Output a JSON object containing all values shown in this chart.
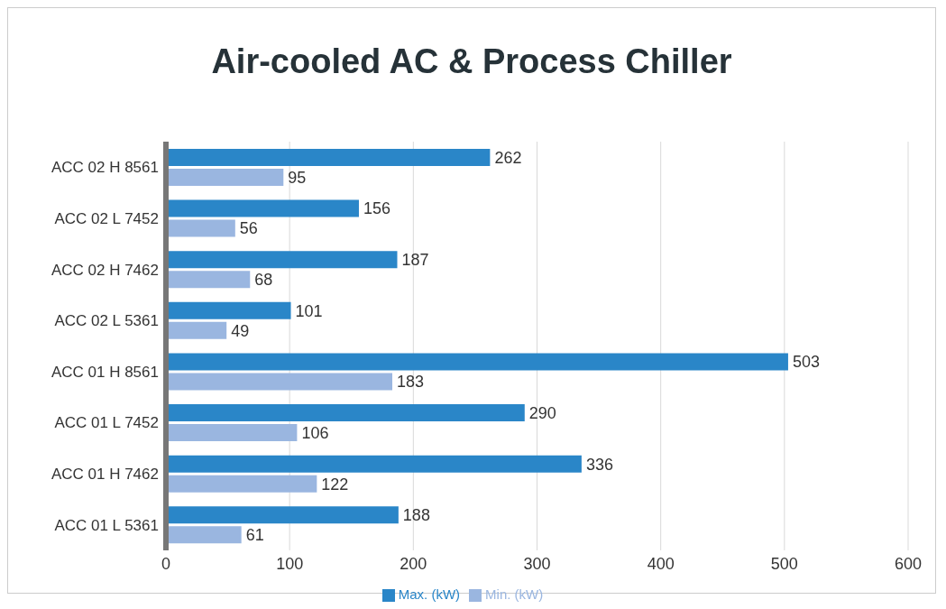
{
  "chart_data": {
    "type": "bar",
    "orientation": "horizontal",
    "title": "Air-cooled AC & Process Chiller",
    "categories": [
      "ACC 02 H 8561",
      "ACC 02 L 7452",
      "ACC 02 H 7462",
      "ACC 02 L 5361",
      "ACC 01 H 8561",
      "ACC 01 L 7452",
      "ACC 01 H 7462",
      "ACC 01 L 5361"
    ],
    "series": [
      {
        "name": "Max. (kW)",
        "color": "#2a86c8",
        "values": [
          262,
          156,
          187,
          101,
          503,
          290,
          336,
          188
        ]
      },
      {
        "name": "Min. (kW)",
        "color": "#9ab6e0",
        "values": [
          95,
          56,
          68,
          49,
          183,
          106,
          122,
          61
        ]
      }
    ],
    "xlim": [
      0,
      600
    ],
    "xticks": [
      0,
      100,
      200,
      300,
      400,
      500,
      600
    ],
    "grid": "x",
    "legend": "bottom",
    "data_labels": true
  }
}
